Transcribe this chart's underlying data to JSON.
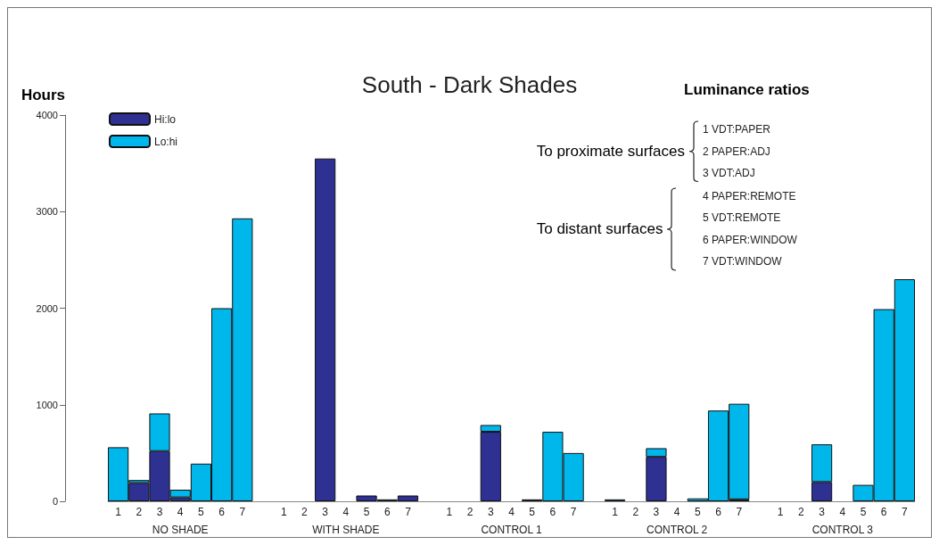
{
  "chart_data": {
    "type": "bar",
    "stacked": true,
    "title": "South - Dark Shades",
    "ylabel": "Hours",
    "categories": [
      "1",
      "2",
      "3",
      "4",
      "5",
      "6",
      "7",
      null,
      "1",
      "2",
      "3",
      "4",
      "5",
      "6",
      "7",
      null,
      "1",
      "2",
      "3",
      "4",
      "5",
      "6",
      "7",
      null,
      "1",
      "2",
      "3",
      "4",
      "5",
      "6",
      "7",
      null,
      "1",
      "2",
      "3",
      "4",
      "5",
      "6",
      "7"
    ],
    "series": [
      {
        "name": "Hi:lo",
        "color": "#2e3192",
        "values": [
          0,
          190,
          520,
          40,
          0,
          0,
          0,
          null,
          0,
          0,
          3550,
          0,
          60,
          0,
          60,
          null,
          0,
          0,
          720,
          0,
          20,
          0,
          0,
          null,
          0,
          0,
          460,
          0,
          0,
          0,
          20,
          null,
          0,
          0,
          200,
          0,
          0,
          0,
          0
        ]
      },
      {
        "name": "Lo:hi",
        "color": "#00b7eb",
        "values": [
          560,
          30,
          390,
          80,
          390,
          2000,
          2930,
          null,
          0,
          0,
          0,
          0,
          0,
          20,
          0,
          null,
          0,
          0,
          70,
          0,
          0,
          720,
          500,
          null,
          20,
          0,
          90,
          0,
          30,
          940,
          990,
          null,
          0,
          0,
          390,
          0,
          170,
          1990,
          2300
        ]
      }
    ],
    "ylim": [
      0,
      4000
    ],
    "yticks": [
      0,
      1000,
      2000,
      3000,
      4000
    ],
    "grid": false,
    "legend": "top left",
    "annotations": [
      "NO SHADE",
      "WITH SHADE",
      "CONTROL 1",
      "CONTROL 2",
      "CONTROL 3",
      "Luminance ratios",
      "To proximate surfaces",
      "1 VDT:PAPER",
      "2 PAPER:ADJ",
      "3 VDT:ADJ",
      "To distant surfaces",
      "4 PAPER:REMOTE",
      "5 VDT:REMOTE",
      "6 PAPER:WINDOW",
      "7 VDT:WINDOW"
    ]
  }
}
